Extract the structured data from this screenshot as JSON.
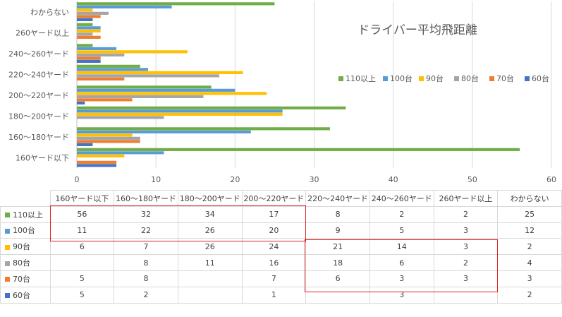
{
  "chart_data": {
    "type": "bar",
    "orientation": "horizontal",
    "title": "ドライバー平均飛距離",
    "categories": [
      "160ヤード以下",
      "160〜180ヤード",
      "180〜200ヤード",
      "200〜220ヤード",
      "220〜240ヤード",
      "240〜260ヤード",
      "260ヤード以上",
      "わからない"
    ],
    "series": [
      {
        "name": "110以上",
        "color": "#70ad47",
        "values": [
          56,
          32,
          34,
          17,
          8,
          2,
          2,
          25
        ]
      },
      {
        "name": "100台",
        "color": "#5b9bd5",
        "values": [
          11,
          22,
          26,
          20,
          9,
          5,
          3,
          12
        ]
      },
      {
        "name": "90台",
        "color": "#ffc000",
        "values": [
          6,
          7,
          26,
          24,
          21,
          14,
          3,
          2
        ]
      },
      {
        "name": "80台",
        "color": "#a5a5a5",
        "values": [
          null,
          8,
          11,
          16,
          18,
          6,
          2,
          4
        ]
      },
      {
        "name": "70台",
        "color": "#ed7d31",
        "values": [
          5,
          8,
          null,
          7,
          6,
          3,
          3,
          3
        ]
      },
      {
        "name": "60台",
        "color": "#4472c4",
        "values": [
          5,
          2,
          null,
          1,
          null,
          3,
          null,
          2
        ]
      }
    ],
    "xlim": [
      0,
      60
    ],
    "xticks": [
      "0",
      "10",
      "20",
      "30",
      "40",
      "50",
      "60"
    ],
    "grid": true,
    "legend": "top-right"
  },
  "table": {
    "columns": [
      "160ヤード以下",
      "160〜180ヤード",
      "180〜200ヤード",
      "200〜220ヤード",
      "220〜240ヤード",
      "240〜260ヤード",
      "260ヤード以上",
      "わからない"
    ],
    "rows": [
      {
        "label": "110以上",
        "color": "#70ad47",
        "cells": [
          "56",
          "32",
          "34",
          "17",
          "8",
          "2",
          "2",
          "25"
        ]
      },
      {
        "label": "100台",
        "color": "#5b9bd5",
        "cells": [
          "11",
          "22",
          "26",
          "20",
          "9",
          "5",
          "3",
          "12"
        ]
      },
      {
        "label": "90台",
        "color": "#ffc000",
        "cells": [
          "6",
          "7",
          "26",
          "24",
          "21",
          "14",
          "3",
          "2"
        ]
      },
      {
        "label": "80台",
        "color": "#a5a5a5",
        "cells": [
          "",
          "8",
          "11",
          "16",
          "18",
          "6",
          "2",
          "4"
        ]
      },
      {
        "label": "70台",
        "color": "#ed7d31",
        "cells": [
          "5",
          "8",
          "",
          "7",
          "6",
          "3",
          "3",
          "3"
        ]
      },
      {
        "label": "60台",
        "color": "#4472c4",
        "cells": [
          "5",
          "2",
          "",
          "1",
          "",
          "3",
          "",
          "2"
        ]
      }
    ]
  },
  "highlight_color": "#e02020"
}
